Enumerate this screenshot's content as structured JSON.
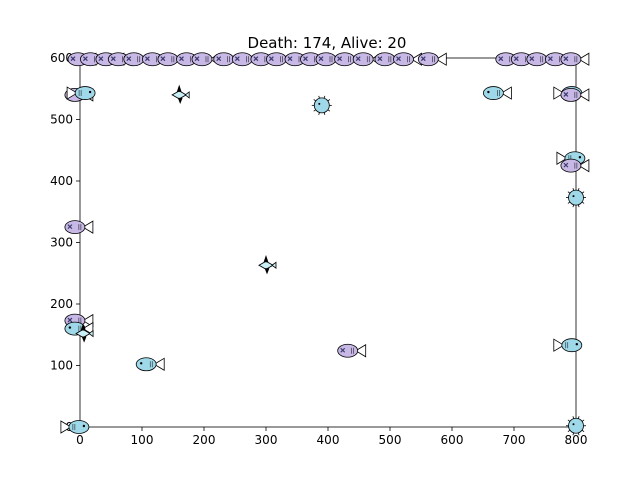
{
  "title": "Death: 174, Alive: 20",
  "stats": {
    "death": 174,
    "alive": 20
  },
  "axes": {
    "xlim": [
      0,
      800
    ],
    "ylim": [
      0,
      600
    ],
    "xticks": [
      0,
      100,
      200,
      300,
      400,
      500,
      600,
      700,
      800
    ],
    "yticks": [
      100,
      200,
      300,
      400,
      500,
      600
    ],
    "ytick_zero_label": "0"
  },
  "colors": {
    "purple_fish": "#c7b8e6",
    "blue_fish": "#9fd8e8",
    "fin": "#ffffff",
    "outline": "#000000",
    "dead_eye": "#3a3a6a"
  },
  "fish": [
    {
      "type": "fish",
      "x": 0,
      "y": 598,
      "dir": "right",
      "color": "purple",
      "dead": true
    },
    {
      "type": "fish",
      "x": 20,
      "y": 598,
      "dir": "right",
      "color": "purple",
      "dead": true
    },
    {
      "type": "fish",
      "x": 45,
      "y": 598,
      "dir": "right",
      "color": "purple",
      "dead": true
    },
    {
      "type": "fish",
      "x": 65,
      "y": 598,
      "dir": "right",
      "color": "purple",
      "dead": true
    },
    {
      "type": "fish",
      "x": 90,
      "y": 598,
      "dir": "right",
      "color": "purple",
      "dead": true
    },
    {
      "type": "fish",
      "x": 120,
      "y": 598,
      "dir": "right",
      "color": "purple",
      "dead": true
    },
    {
      "type": "fish",
      "x": 145,
      "y": 598,
      "dir": "right",
      "color": "purple",
      "dead": true
    },
    {
      "type": "fish",
      "x": 175,
      "y": 598,
      "dir": "right",
      "color": "purple",
      "dead": true
    },
    {
      "type": "fish",
      "x": 200,
      "y": 598,
      "dir": "right",
      "color": "purple",
      "dead": true
    },
    {
      "type": "fish",
      "x": 235,
      "y": 598,
      "dir": "right",
      "color": "purple",
      "dead": true
    },
    {
      "type": "fish",
      "x": 265,
      "y": 598,
      "dir": "right",
      "color": "purple",
      "dead": true
    },
    {
      "type": "fish",
      "x": 295,
      "y": 598,
      "dir": "right",
      "color": "purple",
      "dead": true
    },
    {
      "type": "fish",
      "x": 320,
      "y": 598,
      "dir": "right",
      "color": "purple",
      "dead": true
    },
    {
      "type": "fish",
      "x": 350,
      "y": 598,
      "dir": "right",
      "color": "purple",
      "dead": true
    },
    {
      "type": "fish",
      "x": 375,
      "y": 598,
      "dir": "right",
      "color": "purple",
      "dead": true
    },
    {
      "type": "fish",
      "x": 400,
      "y": 598,
      "dir": "right",
      "color": "purple",
      "dead": true
    },
    {
      "type": "fish",
      "x": 430,
      "y": 598,
      "dir": "right",
      "color": "purple",
      "dead": true
    },
    {
      "type": "fish",
      "x": 460,
      "y": 598,
      "dir": "right",
      "color": "purple",
      "dead": true
    },
    {
      "type": "fish",
      "x": 495,
      "y": 598,
      "dir": "right",
      "color": "purple",
      "dead": true
    },
    {
      "type": "fish",
      "x": 525,
      "y": 598,
      "dir": "right",
      "color": "purple",
      "dead": true
    },
    {
      "type": "fish",
      "x": 565,
      "y": 598,
      "dir": "right",
      "color": "purple",
      "dead": true
    },
    {
      "type": "fish",
      "x": 690,
      "y": 598,
      "dir": "right",
      "color": "purple",
      "dead": true
    },
    {
      "type": "fish",
      "x": 715,
      "y": 598,
      "dir": "right",
      "color": "purple",
      "dead": true
    },
    {
      "type": "fish",
      "x": 740,
      "y": 598,
      "dir": "right",
      "color": "purple",
      "dead": true
    },
    {
      "type": "fish",
      "x": 770,
      "y": 598,
      "dir": "right",
      "color": "purple",
      "dead": true
    },
    {
      "type": "fish",
      "x": 795,
      "y": 598,
      "dir": "right",
      "color": "purple",
      "dead": true
    },
    {
      "type": "fish",
      "x": -5,
      "y": 540,
      "dir": "right",
      "color": "purple",
      "dead": true
    },
    {
      "type": "fish",
      "x": 5,
      "y": 543,
      "dir": "left",
      "color": "blue",
      "dead": false
    },
    {
      "type": "fish",
      "x": 670,
      "y": 543,
      "dir": "right",
      "color": "blue",
      "dead": false
    },
    {
      "type": "fish",
      "x": 790,
      "y": 543,
      "dir": "left",
      "color": "blue",
      "dead": false
    },
    {
      "type": "fish",
      "x": 795,
      "y": 540,
      "dir": "right",
      "color": "purple",
      "dead": true
    },
    {
      "type": "fish",
      "x": 795,
      "y": 437,
      "dir": "left",
      "color": "blue",
      "dead": false
    },
    {
      "type": "fish",
      "x": 795,
      "y": 425,
      "dir": "right",
      "color": "purple",
      "dead": true
    },
    {
      "type": "fish",
      "x": -5,
      "y": 325,
      "dir": "right",
      "color": "purple",
      "dead": true
    },
    {
      "type": "fish",
      "x": -5,
      "y": 173,
      "dir": "right",
      "color": "purple",
      "dead": true
    },
    {
      "type": "fish",
      "x": -5,
      "y": 160,
      "dir": "right",
      "color": "blue",
      "dead": false
    },
    {
      "type": "fish",
      "x": 110,
      "y": 102,
      "dir": "right",
      "color": "blue",
      "dead": false
    },
    {
      "type": "fish",
      "x": 435,
      "y": 124,
      "dir": "right",
      "color": "purple",
      "dead": true
    },
    {
      "type": "fish",
      "x": 790,
      "y": 133,
      "dir": "left",
      "color": "blue",
      "dead": false
    },
    {
      "type": "fish",
      "x": -5,
      "y": 0,
      "dir": "left",
      "color": "blue",
      "dead": false
    },
    {
      "type": "puffer",
      "x": 390,
      "y": 523,
      "color": "blue"
    },
    {
      "type": "puffer",
      "x": 800,
      "y": 373,
      "color": "blue"
    },
    {
      "type": "puffer",
      "x": 800,
      "y": 2,
      "color": "blue"
    },
    {
      "type": "shark",
      "x": 160,
      "y": 540
    },
    {
      "type": "shark",
      "x": 300,
      "y": 263
    },
    {
      "type": "shark",
      "x": 5,
      "y": 152
    }
  ]
}
